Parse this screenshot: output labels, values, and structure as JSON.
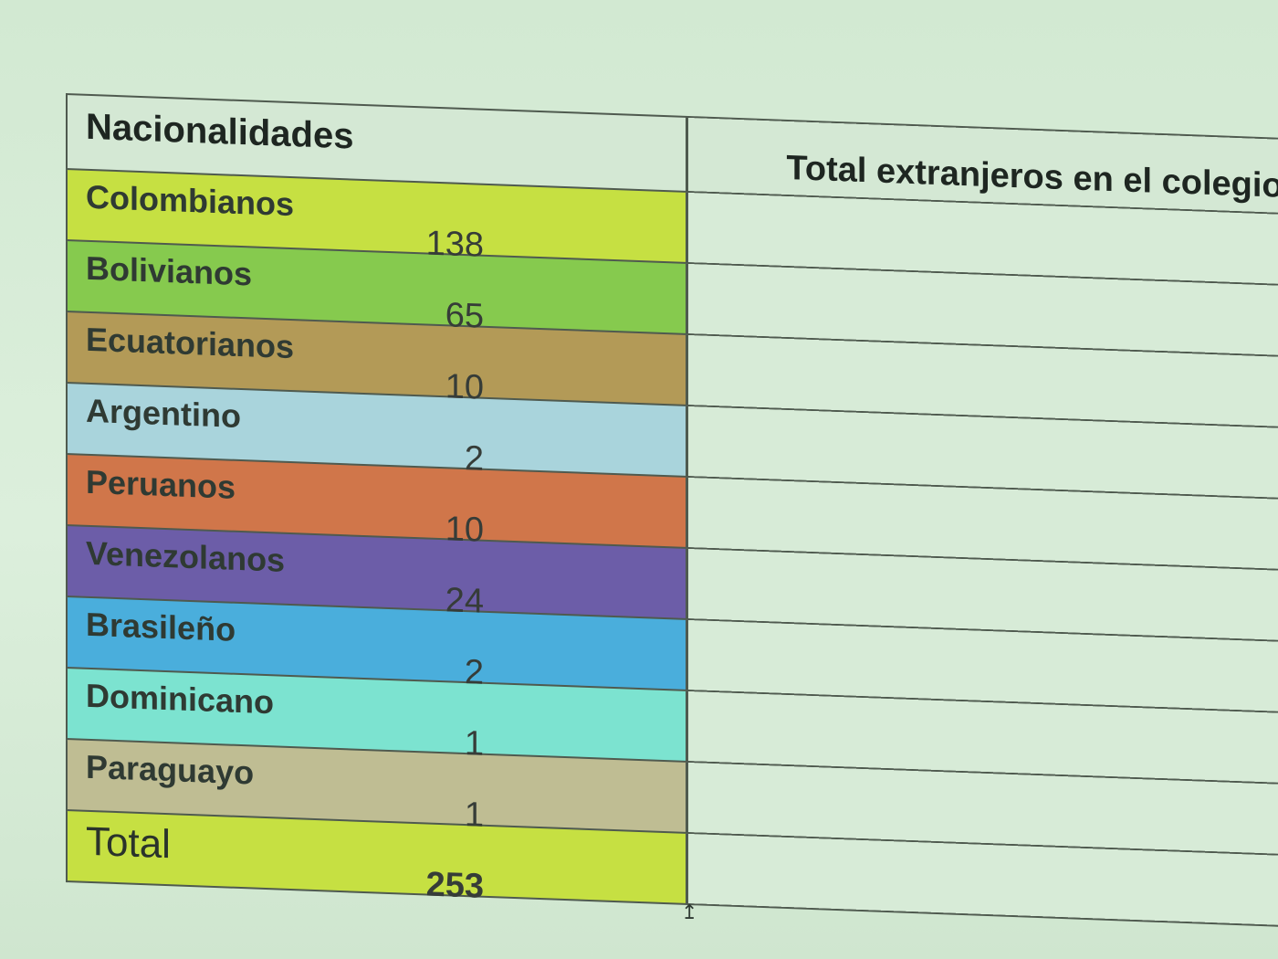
{
  "table": {
    "header": {
      "col1": "Nacionalidades",
      "col2": "Total extranjeros en el colegio"
    },
    "rows": [
      {
        "name": "Colombianos",
        "value": "138",
        "color": "#c6e042"
      },
      {
        "name": "Bolivianos",
        "value": "65",
        "color": "#86ca4e"
      },
      {
        "name": "Ecuatorianos",
        "value": "10",
        "color": "#b39a57"
      },
      {
        "name": "Argentino",
        "value": "2",
        "color": "#a9d4dc"
      },
      {
        "name": "Peruanos",
        "value": "10",
        "color": "#d0764a"
      },
      {
        "name": "Venezolanos",
        "value": "24",
        "color": "#6c5da8"
      },
      {
        "name": "Brasileño",
        "value": "2",
        "color": "#4aaedc"
      },
      {
        "name": "Dominicano",
        "value": "1",
        "color": "#7ce3d0"
      },
      {
        "name": "Paraguayo",
        "value": "1",
        "color": "#bfbd93"
      }
    ],
    "total": {
      "name": "Total",
      "value": "253",
      "color": "#c6e042"
    }
  },
  "colors": {
    "background": "#d6ecd6",
    "grid": "#4f5a4f"
  }
}
